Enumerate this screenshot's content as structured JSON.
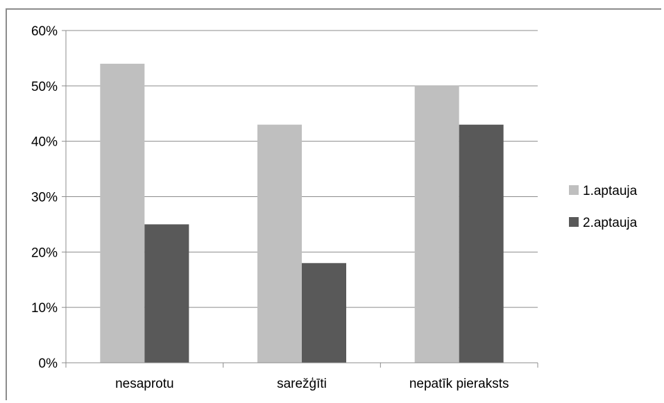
{
  "chart_data": {
    "type": "bar",
    "title": "",
    "xlabel": "",
    "ylabel": "",
    "categories": [
      "nesaprotu",
      "sarežģīti",
      "nepatīk pieraksts"
    ],
    "series": [
      {
        "name": "1.aptauja",
        "values": [
          0.54,
          0.43,
          0.5
        ],
        "color": "#bfbfbf"
      },
      {
        "name": "2.aptauja",
        "values": [
          0.25,
          0.18,
          0.43
        ],
        "color": "#595959"
      }
    ],
    "ylim": [
      0,
      0.6
    ],
    "yticks": [
      0,
      0.1,
      0.2,
      0.3,
      0.4,
      0.5,
      0.6
    ],
    "ytick_labels": [
      "0%",
      "10%",
      "20%",
      "30%",
      "40%",
      "50%",
      "60%"
    ],
    "grid": true,
    "legend_position": "right"
  }
}
